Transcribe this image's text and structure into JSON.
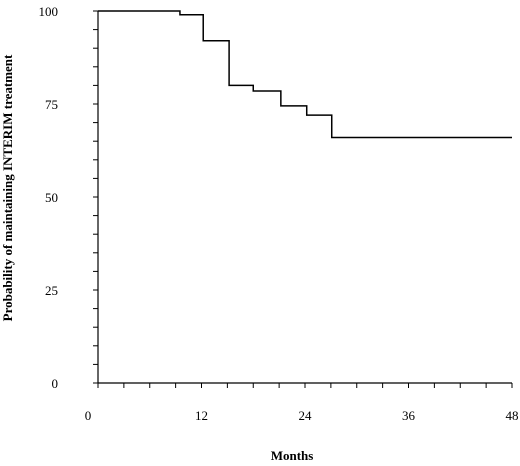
{
  "chart_data": {
    "type": "line",
    "step": true,
    "title": "",
    "xlabel": "Months",
    "ylabel": "Probability of maintaining INTERIM treatment",
    "xlim": [
      0,
      48
    ],
    "ylim": [
      0,
      100
    ],
    "x_ticks": [
      0,
      12,
      24,
      36,
      48
    ],
    "x_minor_ticks": [
      0,
      3,
      6,
      9,
      12,
      15,
      18,
      21,
      24,
      27,
      30,
      33,
      36,
      39,
      42,
      45,
      48
    ],
    "y_ticks": [
      0,
      25,
      50,
      75,
      100
    ],
    "y_minor_ticks": [
      0,
      5,
      10,
      15,
      20,
      25,
      30,
      35,
      40,
      45,
      50,
      55,
      60,
      65,
      70,
      75,
      80,
      85,
      90,
      95,
      100
    ],
    "grid": false,
    "legend": "none",
    "series": [
      {
        "x": [
          0,
          9.5,
          12.2,
          15.2,
          18,
          21.2,
          24.2,
          27.1,
          48
        ],
        "y": [
          100,
          99,
          92,
          80,
          78.5,
          74.5,
          72,
          66,
          66
        ]
      }
    ]
  }
}
